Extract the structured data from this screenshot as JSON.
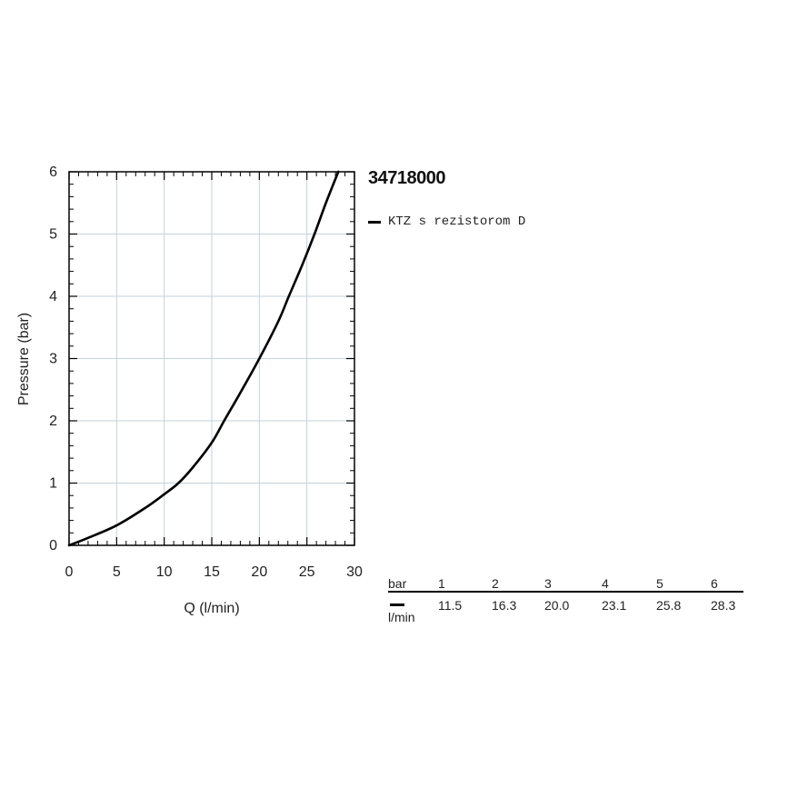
{
  "title": "34718000",
  "legend": {
    "label": "KTZ s rezistorom D",
    "color": "#000000"
  },
  "chart_data": {
    "type": "line",
    "xlabel": "Q (l/min)",
    "ylabel": "Pressure (bar)",
    "xlim": [
      0,
      30
    ],
    "ylim": [
      0,
      6
    ],
    "xticks": [
      "0",
      "5",
      "10",
      "15",
      "20",
      "25",
      "30"
    ],
    "yticks": [
      "0",
      "1",
      "2",
      "3",
      "4",
      "5",
      "6"
    ],
    "grid": true,
    "series": [
      {
        "name": "KTZ s rezistorom D",
        "color": "#000000",
        "x": [
          0,
          2,
          5,
          8,
          10,
          11.5,
          13,
          15,
          16.3,
          18,
          20,
          22,
          23.1,
          24.5,
          25.8,
          27,
          28.3
        ],
        "y": [
          0,
          0.12,
          0.32,
          0.6,
          0.82,
          1.0,
          1.25,
          1.65,
          2.0,
          2.45,
          3.0,
          3.6,
          4.0,
          4.5,
          5.0,
          5.5,
          6.0
        ]
      }
    ]
  },
  "flow_table": {
    "pressure_label": "bar",
    "flow_label": "l/min",
    "pressures": [
      "1",
      "2",
      "3",
      "4",
      "5",
      "6"
    ],
    "flows": [
      "11.5",
      "16.3",
      "20.0",
      "23.1",
      "25.8",
      "28.3"
    ]
  }
}
